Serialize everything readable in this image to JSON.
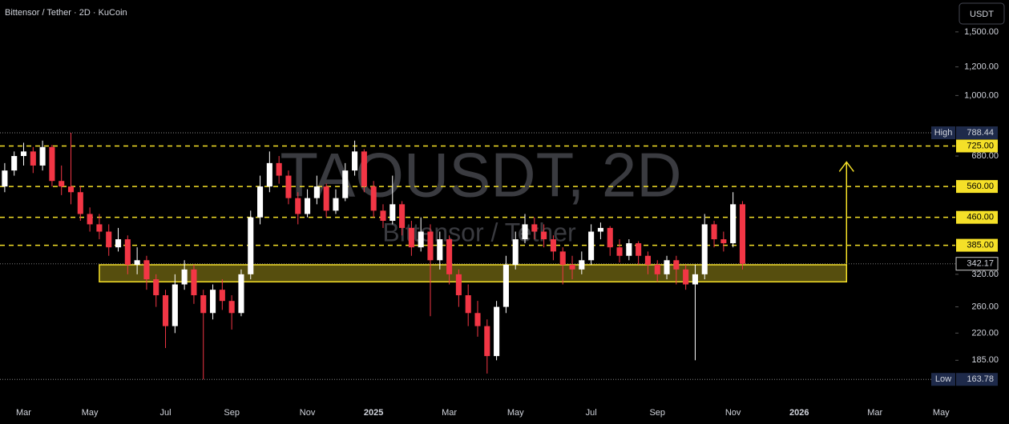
{
  "chart_data": {
    "type": "candlestick",
    "title": "Bittensor / Tether · 2D · KuCoin",
    "watermark": "TAOUSDT, 2D",
    "watermark_subtitle": "Bittensor / Tether",
    "currency_button": "USDT",
    "log_scale": true,
    "up_color": "#ffffff",
    "down_color": "#f23645",
    "level_color": "#f5e028",
    "categories": [
      null,
      null,
      "Mar",
      null,
      null,
      null,
      null,
      null,
      null,
      "May",
      null,
      null,
      null,
      null,
      null,
      null,
      null,
      "Jul",
      null,
      null,
      null,
      null,
      null,
      null,
      "Sep",
      null,
      null,
      null,
      null,
      null,
      null,
      null,
      "Nov",
      null,
      null,
      null,
      null,
      null,
      null,
      "2025",
      null,
      null,
      null,
      null,
      null,
      null,
      null,
      "Mar",
      null,
      null,
      null,
      null,
      null,
      null,
      "May",
      null,
      null,
      null,
      null,
      null,
      null,
      null,
      "Jul",
      null,
      null,
      null,
      null,
      null,
      null,
      "Sep",
      null,
      null,
      null,
      null,
      null,
      null,
      null,
      "Nov",
      null,
      null,
      null,
      null,
      null,
      null,
      "2026",
      null,
      null,
      null,
      null,
      null,
      null,
      null,
      "Mar",
      null,
      null,
      null,
      null,
      null,
      null,
      "May",
      null
    ],
    "open": [
      560,
      620,
      680,
      700,
      640,
      720,
      580,
      560,
      540,
      470,
      440,
      420,
      380,
      400,
      340,
      350,
      310,
      280,
      230,
      300,
      330,
      280,
      250,
      290,
      270,
      250,
      320,
      460,
      560,
      650,
      600,
      520,
      470,
      520,
      560,
      480,
      520,
      620,
      700,
      560,
      480,
      450,
      500,
      430,
      380,
      420,
      350,
      400,
      320,
      280,
      250,
      230,
      190,
      260,
      340,
      400,
      440,
      420,
      400,
      370,
      340,
      330,
      350,
      420,
      430,
      380,
      360,
      390,
      360,
      340,
      320,
      350,
      330,
      300,
      320,
      440,
      400,
      390,
      500,
      null,
      null,
      null,
      null,
      null,
      null,
      null,
      null,
      null,
      null,
      null,
      null,
      null,
      null,
      null,
      null,
      null,
      null,
      null,
      null,
      null,
      null
    ],
    "high": [
      650,
      700,
      740,
      720,
      750,
      730,
      640,
      788.44,
      560,
      490,
      470,
      440,
      430,
      410,
      380,
      360,
      320,
      290,
      320,
      350,
      340,
      290,
      300,
      310,
      280,
      330,
      480,
      600,
      700,
      680,
      620,
      540,
      550,
      600,
      570,
      550,
      650,
      750,
      710,
      580,
      500,
      600,
      510,
      450,
      460,
      440,
      420,
      410,
      330,
      300,
      270,
      240,
      270,
      360,
      420,
      470,
      460,
      440,
      410,
      380,
      360,
      370,
      440,
      445,
      435,
      400,
      400,
      395,
      370,
      350,
      360,
      360,
      340,
      340,
      470,
      450,
      420,
      540,
      510,
      null,
      null,
      null,
      null,
      null,
      null,
      null,
      null,
      null,
      null,
      null,
      null,
      null,
      null,
      null,
      null,
      null,
      null,
      null,
      null,
      null,
      null
    ],
    "low": [
      540,
      600,
      640,
      610,
      620,
      560,
      530,
      500,
      450,
      420,
      400,
      360,
      370,
      320,
      320,
      290,
      260,
      200,
      220,
      290,
      265,
      163.78,
      240,
      255,
      225,
      245,
      310,
      440,
      540,
      570,
      500,
      440,
      460,
      500,
      460,
      470,
      510,
      600,
      540,
      460,
      430,
      440,
      410,
      360,
      370,
      245,
      330,
      300,
      260,
      230,
      215,
      170,
      185,
      250,
      330,
      390,
      400,
      380,
      350,
      300,
      310,
      320,
      340,
      400,
      360,
      345,
      350,
      340,
      320,
      305,
      310,
      300,
      290,
      185,
      310,
      380,
      370,
      380,
      330,
      null,
      null,
      null,
      null,
      null,
      null,
      null,
      null,
      null,
      null,
      null,
      null,
      null,
      null,
      null,
      null,
      null,
      null,
      null,
      null,
      null,
      null
    ],
    "close": [
      620,
      680,
      700,
      640,
      720,
      580,
      560,
      540,
      470,
      440,
      420,
      380,
      400,
      340,
      350,
      310,
      280,
      230,
      300,
      330,
      280,
      250,
      290,
      270,
      250,
      320,
      460,
      560,
      650,
      600,
      520,
      470,
      520,
      560,
      480,
      520,
      620,
      700,
      560,
      480,
      450,
      500,
      430,
      380,
      420,
      350,
      400,
      320,
      280,
      250,
      230,
      190,
      260,
      340,
      400,
      440,
      420,
      400,
      370,
      340,
      330,
      350,
      420,
      430,
      380,
      360,
      390,
      360,
      340,
      320,
      350,
      330,
      300,
      320,
      440,
      400,
      390,
      500,
      342.17,
      null,
      null,
      null,
      null,
      null,
      null,
      null,
      null,
      null,
      null,
      null,
      null,
      null,
      null,
      null,
      null,
      null,
      null,
      null,
      null,
      null,
      null
    ],
    "ylim": [
      140,
      1838
    ],
    "yticks": [
      {
        "value": 1500,
        "label": "1,500.00"
      },
      {
        "value": 1200,
        "label": "1,200.00"
      },
      {
        "value": 1000,
        "label": "1,000.00"
      },
      {
        "value": 680,
        "label": "680.00"
      },
      {
        "value": 320,
        "label": "320.00"
      },
      {
        "value": 260,
        "label": "260.00"
      },
      {
        "value": 220,
        "label": "220.00"
      },
      {
        "value": 185,
        "label": "185.00"
      }
    ],
    "levels": [
      {
        "value": 725,
        "label": "725.00"
      },
      {
        "value": 560,
        "label": "560.00"
      },
      {
        "value": 460,
        "label": "460.00"
      },
      {
        "value": 385,
        "label": "385.00"
      }
    ],
    "support_zone": [
      305,
      340
    ],
    "high_marker": {
      "name": "High",
      "value": 788.44,
      "label": "788.44"
    },
    "low_marker": {
      "name": "Low",
      "value": 163.78,
      "label": "163.78"
    },
    "last_price": {
      "value": 342.17,
      "label": "342.17"
    }
  }
}
